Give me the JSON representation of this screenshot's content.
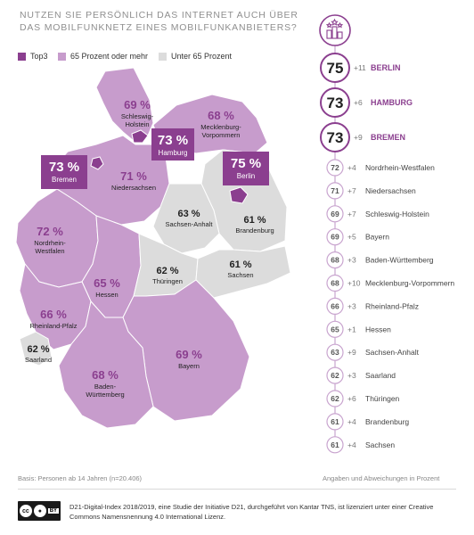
{
  "title": "NUTZEN SIE PERSÖNLICH DAS INTERNET AUCH ÜBER DAS MOBILFUNKNETZ EINES MOBILFUNKANBIETERS?",
  "legend": [
    {
      "label": "Top3",
      "color": "#8b3f8f"
    },
    {
      "label": "65 Prozent oder mehr",
      "color": "#c79ccc"
    },
    {
      "label": "Unter 65 Prozent",
      "color": "#dcdcdc"
    }
  ],
  "colors": {
    "top": "#8b3f8f",
    "high": "#c79ccc",
    "low": "#dcdcdc",
    "accent": "#8b3f8f",
    "line": "#c9a5cf"
  },
  "regions": [
    {
      "id": "sh",
      "name": "Schleswig-Holstein",
      "value": "69 %",
      "category": "high"
    },
    {
      "id": "hh",
      "name": "Hamburg",
      "value": "73 %",
      "category": "top"
    },
    {
      "id": "mv",
      "name": "Mecklenburg-Vorpommern",
      "value": "68 %",
      "category": "high"
    },
    {
      "id": "hb",
      "name": "Bremen",
      "value": "73 %",
      "category": "top"
    },
    {
      "id": "ni",
      "name": "Niedersachsen",
      "value": "71 %",
      "category": "high"
    },
    {
      "id": "be",
      "name": "Berlin",
      "value": "75 %",
      "category": "top"
    },
    {
      "id": "st",
      "name": "Sachsen-Anhalt",
      "value": "63 %",
      "category": "low"
    },
    {
      "id": "bb",
      "name": "Brandenburg",
      "value": "61 %",
      "category": "low"
    },
    {
      "id": "nw",
      "name": "Nordrhein-Westfalen",
      "value": "72 %",
      "category": "high"
    },
    {
      "id": "he",
      "name": "Hessen",
      "value": "65 %",
      "category": "high"
    },
    {
      "id": "th",
      "name": "Thüringen",
      "value": "62 %",
      "category": "low"
    },
    {
      "id": "sn",
      "name": "Sachsen",
      "value": "61 %",
      "category": "low"
    },
    {
      "id": "rp",
      "name": "Rheinland-Pfalz",
      "value": "66 %",
      "category": "high"
    },
    {
      "id": "sl",
      "name": "Saarland",
      "value": "62 %",
      "category": "low"
    },
    {
      "id": "by",
      "name": "Bayern",
      "value": "69 %",
      "category": "high"
    },
    {
      "id": "bw",
      "name": "Baden-Württemberg",
      "value": "68 %",
      "category": "high"
    }
  ],
  "ranking": [
    {
      "value": "75",
      "change": "+11",
      "name": "BERLIN",
      "top": true
    },
    {
      "value": "73",
      "change": "+6",
      "name": "HAMBURG",
      "top": true
    },
    {
      "value": "73",
      "change": "+9",
      "name": "BREMEN",
      "top": true
    },
    {
      "value": "72",
      "change": "+4",
      "name": "Nordrhein-Westfalen",
      "top": false
    },
    {
      "value": "71",
      "change": "+7",
      "name": "Niedersachsen",
      "top": false
    },
    {
      "value": "69",
      "change": "+7",
      "name": "Schleswig-Holstein",
      "top": false
    },
    {
      "value": "69",
      "change": "+5",
      "name": "Bayern",
      "top": false
    },
    {
      "value": "68",
      "change": "+3",
      "name": "Baden-Württemberg",
      "top": false
    },
    {
      "value": "68",
      "change": "+10",
      "name": "Mecklenburg-Vorpommern",
      "top": false
    },
    {
      "value": "66",
      "change": "+3",
      "name": "Rheinland-Pfalz",
      "top": false
    },
    {
      "value": "65",
      "change": "+1",
      "name": "Hessen",
      "top": false
    },
    {
      "value": "63",
      "change": "+9",
      "name": "Sachsen-Anhalt",
      "top": false
    },
    {
      "value": "62",
      "change": "+3",
      "name": "Saarland",
      "top": false
    },
    {
      "value": "62",
      "change": "+6",
      "name": "Thüringen",
      "top": false
    },
    {
      "value": "61",
      "change": "+4",
      "name": "Brandenburg",
      "top": false
    },
    {
      "value": "61",
      "change": "+4",
      "name": "Sachsen",
      "top": false
    }
  ],
  "footnote_left": "Basis: Personen ab 14 Jahren (n=20.406)",
  "footnote_right": "Angaben und Abweichungen in Prozent",
  "license": "D21-Digital-Index 2018/2019, eine Studie der Initiative D21, durchgeführt von Kantar TNS, ist lizenziert unter einer Creative Commons Namensnennung 4.0 International Lizenz.",
  "cc_badge": {
    "cc": "cc",
    "by": "BY"
  }
}
